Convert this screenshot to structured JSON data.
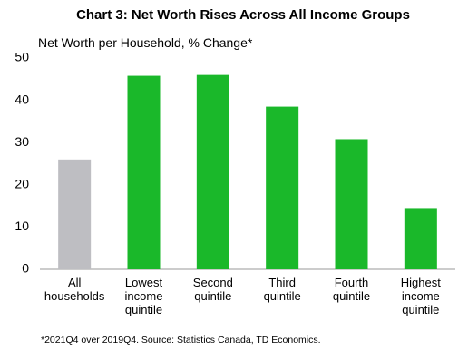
{
  "chart_data": {
    "type": "bar",
    "title": "Chart 3: Net Worth Rises Across All Income Groups",
    "y_label": "Net Worth per Household, % Change*",
    "footnote": "*2021Q4 over 2019Q4. Source: Statistics Canada, TD Economics.",
    "categories": [
      "All households",
      "Lowest income quintile",
      "Second quintile",
      "Third quintile",
      "Fourth quintile",
      "Highest income quintile"
    ],
    "values": [
      26,
      45.8,
      46,
      38.5,
      30.8,
      14.5
    ],
    "colors": [
      "#bebec2",
      "#1ab82a",
      "#1ab82a",
      "#1ab82a",
      "#1ab82a",
      "#1ab82a"
    ],
    "ylim": [
      0,
      50
    ],
    "yticks": [
      0,
      10,
      20,
      30,
      40,
      50
    ],
    "grid": false
  }
}
